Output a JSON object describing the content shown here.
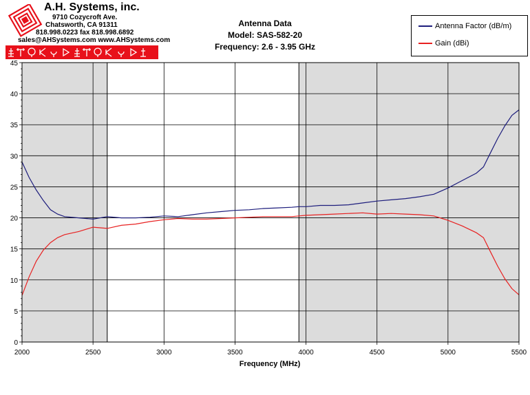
{
  "header": {
    "company": "A.H. Systems, inc.",
    "address_line1": "9710 Cozycroft Ave.",
    "address_line2": "Chatsworth, CA 91311",
    "phone_fax": "818.998.0223 fax 818.998.6892",
    "contact": "sales@AHSystems.com www.AHSystems.com",
    "strip_color": "#e8101a"
  },
  "chart_data": {
    "type": "line",
    "title_lines": [
      "Antenna Data",
      "Model: SAS-582-20",
      "Frequency: 2.6 - 3.95 GHz"
    ],
    "xlabel": "Frequency (MHz)",
    "ylabel": "",
    "xlim": [
      2000,
      5500
    ],
    "ylim": [
      0,
      45
    ],
    "xticks": [
      2000,
      2500,
      3000,
      3500,
      4000,
      4500,
      5000,
      5500
    ],
    "yticks": [
      0,
      5,
      10,
      15,
      20,
      25,
      30,
      35,
      40,
      45
    ],
    "grid": true,
    "legend_position": "top-right",
    "shaded_regions": [
      [
        2000,
        2600
      ],
      [
        3950,
        5500
      ]
    ],
    "shade_color": "#dcdcdc",
    "series": [
      {
        "name": "Antenna Factor (dB/m)",
        "color": "#1c1c7c",
        "x": [
          2000,
          2050,
          2100,
          2150,
          2200,
          2250,
          2300,
          2400,
          2500,
          2600,
          2700,
          2800,
          2900,
          3000,
          3100,
          3200,
          3300,
          3400,
          3500,
          3600,
          3700,
          3800,
          3900,
          3950,
          4000,
          4100,
          4200,
          4300,
          4400,
          4500,
          4600,
          4700,
          4800,
          4900,
          5000,
          5100,
          5200,
          5250,
          5300,
          5350,
          5400,
          5450,
          5500
        ],
        "y": [
          29,
          26.5,
          24.5,
          22.8,
          21.3,
          20.6,
          20.2,
          20.0,
          19.8,
          20.2,
          20.0,
          20.0,
          20.1,
          20.3,
          20.2,
          20.5,
          20.8,
          21.0,
          21.2,
          21.3,
          21.5,
          21.6,
          21.7,
          21.8,
          21.8,
          22.0,
          22.0,
          22.1,
          22.4,
          22.7,
          22.9,
          23.1,
          23.4,
          23.8,
          24.8,
          26.0,
          27.2,
          28.2,
          30.5,
          32.8,
          34.8,
          36.5,
          37.4
        ]
      },
      {
        "name": "Gain (dBi)",
        "color": "#e82020",
        "x": [
          2000,
          2050,
          2100,
          2150,
          2200,
          2250,
          2300,
          2400,
          2500,
          2600,
          2700,
          2800,
          2900,
          3000,
          3100,
          3200,
          3300,
          3400,
          3500,
          3600,
          3700,
          3800,
          3900,
          3950,
          4000,
          4100,
          4200,
          4300,
          4400,
          4500,
          4600,
          4700,
          4800,
          4900,
          5000,
          5100,
          5200,
          5250,
          5300,
          5350,
          5400,
          5450,
          5500
        ],
        "y": [
          7.5,
          10.5,
          13.0,
          14.8,
          16.0,
          16.8,
          17.3,
          17.8,
          18.5,
          18.3,
          18.8,
          19.0,
          19.4,
          19.7,
          19.9,
          19.8,
          19.8,
          19.9,
          20.0,
          20.1,
          20.2,
          20.2,
          20.2,
          20.3,
          20.4,
          20.5,
          20.6,
          20.7,
          20.8,
          20.6,
          20.7,
          20.6,
          20.5,
          20.3,
          19.6,
          18.7,
          17.6,
          16.8,
          14.5,
          12.2,
          10.2,
          8.6,
          7.6
        ]
      }
    ]
  }
}
